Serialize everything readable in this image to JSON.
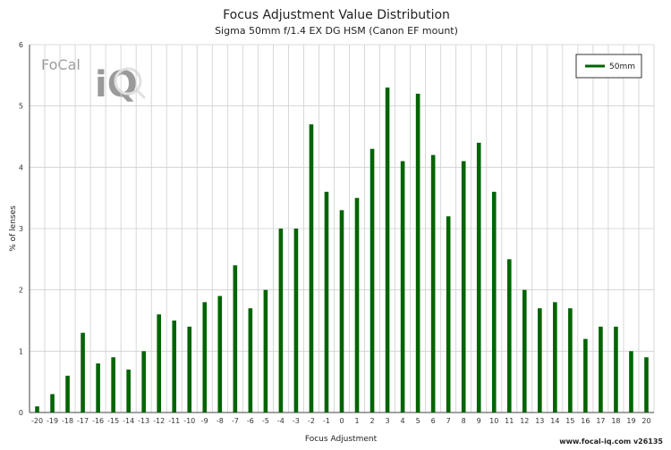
{
  "chart_data": {
    "type": "bar",
    "title": "Focus Adjustment Value Distribution",
    "subtitle": "Sigma 50mm f/1.4 EX DG HSM (Canon EF mount)",
    "xlabel": "Focus Adjustment",
    "ylabel": "% of lenses",
    "categories": [
      "-20",
      "-19",
      "-18",
      "-17",
      "-16",
      "-15",
      "-14",
      "-13",
      "-12",
      "-11",
      "-10",
      "-9",
      "-8",
      "-7",
      "-6",
      "-5",
      "-4",
      "-3",
      "-2",
      "-1",
      "0",
      "1",
      "2",
      "3",
      "4",
      "5",
      "6",
      "7",
      "8",
      "9",
      "10",
      "11",
      "12",
      "13",
      "14",
      "15",
      "16",
      "17",
      "18",
      "19",
      "20"
    ],
    "series": [
      {
        "name": "50mm",
        "color": "#006400",
        "values": [
          0.1,
          0.3,
          0.6,
          1.3,
          0.8,
          0.9,
          0.7,
          1.0,
          1.6,
          1.5,
          1.4,
          1.8,
          1.9,
          2.4,
          1.7,
          2.0,
          3.0,
          3.0,
          4.7,
          3.6,
          3.3,
          3.5,
          4.3,
          5.3,
          4.1,
          5.2,
          4.2,
          3.2,
          4.1,
          4.4,
          3.6,
          2.5,
          2.0,
          1.7,
          1.8,
          1.7,
          1.2,
          1.4,
          1.4,
          1.0,
          0.9
        ]
      }
    ],
    "ylim": [
      0,
      6
    ],
    "yticks": [
      0,
      1,
      2,
      3,
      4,
      5,
      6
    ],
    "grid": true,
    "legend_position": "top-right"
  },
  "logo": {
    "text_top": "FoCal",
    "text_big": "iQ"
  },
  "footer": {
    "text": "www.focal-iq.com  v26135"
  }
}
